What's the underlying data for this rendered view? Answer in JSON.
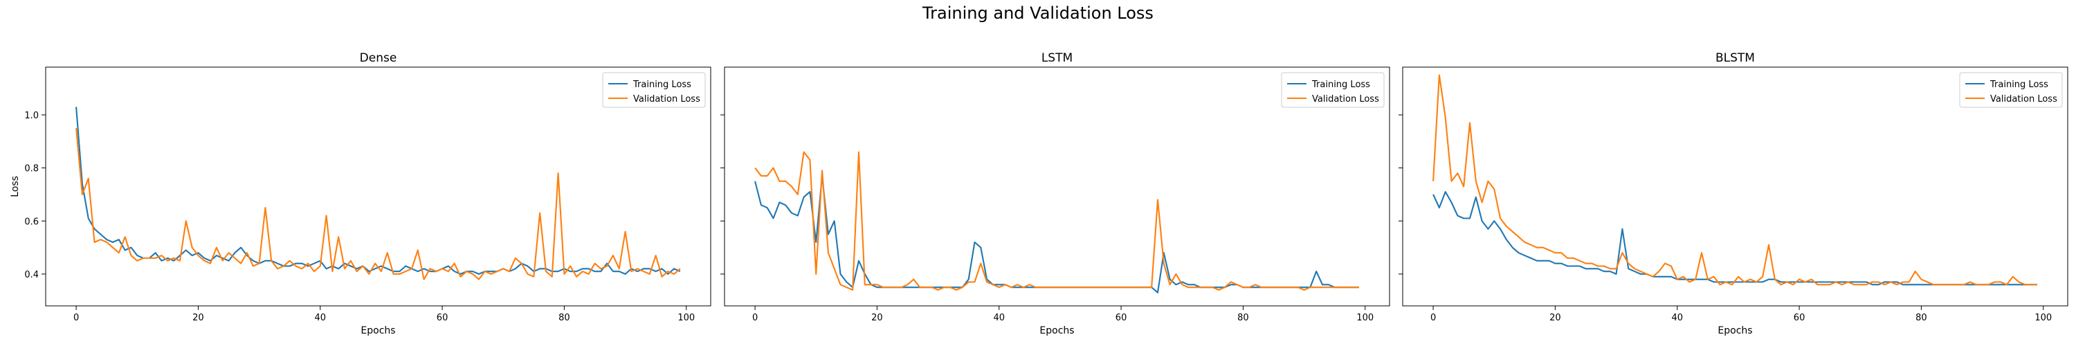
{
  "figure": {
    "title": "Training and Validation Loss"
  },
  "colors": {
    "training": "#1f77b4",
    "validation": "#ff7f0e"
  },
  "chart_data": [
    {
      "type": "line",
      "title": "Dense",
      "xlabel": "Epochs",
      "ylabel": "Loss",
      "xlim": [
        -5,
        104
      ],
      "ylim": [
        0.28,
        1.18
      ],
      "xticks": [
        0,
        20,
        40,
        60,
        80,
        100
      ],
      "yticks": [
        0.4,
        0.6,
        0.8,
        1.0
      ],
      "ytick_labels": [
        "0.4",
        "0.6",
        "0.8",
        "1.0"
      ],
      "legend": "top-right",
      "series": [
        {
          "name": "Training Loss",
          "color": "#1f77b4",
          "values": [
            1.03,
            0.74,
            0.61,
            0.57,
            0.55,
            0.53,
            0.52,
            0.53,
            0.49,
            0.5,
            0.47,
            0.46,
            0.46,
            0.48,
            0.45,
            0.46,
            0.45,
            0.47,
            0.49,
            0.47,
            0.48,
            0.46,
            0.45,
            0.47,
            0.46,
            0.45,
            0.48,
            0.5,
            0.47,
            0.45,
            0.44,
            0.45,
            0.45,
            0.44,
            0.43,
            0.43,
            0.44,
            0.44,
            0.43,
            0.44,
            0.45,
            0.42,
            0.43,
            0.42,
            0.44,
            0.43,
            0.42,
            0.43,
            0.41,
            0.42,
            0.43,
            0.42,
            0.41,
            0.41,
            0.43,
            0.42,
            0.41,
            0.42,
            0.41,
            0.41,
            0.42,
            0.43,
            0.41,
            0.4,
            0.41,
            0.41,
            0.4,
            0.41,
            0.41,
            0.41,
            0.42,
            0.41,
            0.42,
            0.44,
            0.43,
            0.41,
            0.42,
            0.42,
            0.41,
            0.41,
            0.42,
            0.41,
            0.41,
            0.42,
            0.42,
            0.41,
            0.41,
            0.44,
            0.41,
            0.41,
            0.4,
            0.42,
            0.41,
            0.42,
            0.42,
            0.41,
            0.42,
            0.4,
            0.42,
            0.41
          ]
        },
        {
          "name": "Validation Loss",
          "color": "#ff7f0e",
          "values": [
            0.95,
            0.7,
            0.76,
            0.52,
            0.53,
            0.52,
            0.5,
            0.48,
            0.54,
            0.47,
            0.45,
            0.46,
            0.46,
            0.46,
            0.47,
            0.45,
            0.46,
            0.45,
            0.6,
            0.5,
            0.47,
            0.45,
            0.44,
            0.5,
            0.45,
            0.48,
            0.46,
            0.44,
            0.48,
            0.43,
            0.44,
            0.65,
            0.45,
            0.42,
            0.43,
            0.45,
            0.43,
            0.42,
            0.44,
            0.41,
            0.43,
            0.62,
            0.41,
            0.54,
            0.42,
            0.45,
            0.41,
            0.43,
            0.4,
            0.44,
            0.41,
            0.48,
            0.4,
            0.4,
            0.41,
            0.42,
            0.49,
            0.38,
            0.42,
            0.41,
            0.42,
            0.41,
            0.44,
            0.39,
            0.41,
            0.4,
            0.38,
            0.41,
            0.4,
            0.41,
            0.42,
            0.41,
            0.46,
            0.44,
            0.4,
            0.39,
            0.63,
            0.41,
            0.39,
            0.78,
            0.4,
            0.43,
            0.39,
            0.41,
            0.4,
            0.44,
            0.42,
            0.43,
            0.47,
            0.42,
            0.56,
            0.41,
            0.42,
            0.41,
            0.4,
            0.47,
            0.39,
            0.41,
            0.4,
            0.42
          ]
        }
      ]
    },
    {
      "type": "line",
      "title": "LSTM",
      "xlabel": "Epochs",
      "ylabel": "",
      "xlim": [
        -5,
        104
      ],
      "ylim": [
        0.28,
        1.18
      ],
      "xticks": [
        0,
        20,
        40,
        60,
        80,
        100
      ],
      "yticks": [
        0.4,
        0.6,
        0.8,
        1.0
      ],
      "ytick_labels": [],
      "legend": "top-right",
      "series": [
        {
          "name": "Training Loss",
          "color": "#1f77b4",
          "values": [
            0.75,
            0.66,
            0.65,
            0.61,
            0.67,
            0.66,
            0.63,
            0.62,
            0.69,
            0.71,
            0.52,
            0.77,
            0.55,
            0.6,
            0.4,
            0.37,
            0.35,
            0.45,
            0.4,
            0.36,
            0.35,
            0.35,
            0.35,
            0.35,
            0.35,
            0.35,
            0.35,
            0.35,
            0.35,
            0.35,
            0.35,
            0.35,
            0.35,
            0.35,
            0.35,
            0.38,
            0.52,
            0.5,
            0.38,
            0.36,
            0.36,
            0.36,
            0.35,
            0.35,
            0.35,
            0.35,
            0.35,
            0.35,
            0.35,
            0.35,
            0.35,
            0.35,
            0.35,
            0.35,
            0.35,
            0.35,
            0.35,
            0.35,
            0.35,
            0.35,
            0.35,
            0.35,
            0.35,
            0.35,
            0.35,
            0.35,
            0.33,
            0.48,
            0.38,
            0.36,
            0.37,
            0.36,
            0.36,
            0.35,
            0.35,
            0.35,
            0.35,
            0.35,
            0.36,
            0.36,
            0.35,
            0.35,
            0.35,
            0.35,
            0.35,
            0.35,
            0.35,
            0.35,
            0.35,
            0.35,
            0.35,
            0.35,
            0.41,
            0.36,
            0.36,
            0.35,
            0.35,
            0.35,
            0.35,
            0.35
          ]
        },
        {
          "name": "Validation Loss",
          "color": "#ff7f0e",
          "values": [
            0.8,
            0.77,
            0.77,
            0.8,
            0.75,
            0.75,
            0.73,
            0.7,
            0.86,
            0.83,
            0.4,
            0.79,
            0.48,
            0.42,
            0.36,
            0.35,
            0.34,
            0.86,
            0.36,
            0.36,
            0.36,
            0.35,
            0.35,
            0.35,
            0.35,
            0.36,
            0.38,
            0.35,
            0.35,
            0.35,
            0.34,
            0.35,
            0.35,
            0.34,
            0.35,
            0.37,
            0.37,
            0.44,
            0.37,
            0.36,
            0.35,
            0.36,
            0.35,
            0.36,
            0.35,
            0.36,
            0.35,
            0.35,
            0.35,
            0.35,
            0.35,
            0.35,
            0.35,
            0.35,
            0.35,
            0.35,
            0.35,
            0.35,
            0.35,
            0.35,
            0.35,
            0.35,
            0.35,
            0.35,
            0.35,
            0.35,
            0.68,
            0.44,
            0.36,
            0.4,
            0.36,
            0.35,
            0.35,
            0.35,
            0.35,
            0.35,
            0.34,
            0.35,
            0.37,
            0.36,
            0.35,
            0.35,
            0.36,
            0.35,
            0.35,
            0.35,
            0.35,
            0.35,
            0.35,
            0.35,
            0.34,
            0.35,
            0.35,
            0.35,
            0.35,
            0.35,
            0.35,
            0.35,
            0.35,
            0.35
          ]
        }
      ]
    },
    {
      "type": "line",
      "title": "BLSTM",
      "xlabel": "Epochs",
      "ylabel": "",
      "xlim": [
        -5,
        104
      ],
      "ylim": [
        0.28,
        1.18
      ],
      "xticks": [
        0,
        20,
        40,
        60,
        80,
        100
      ],
      "yticks": [
        0.4,
        0.6,
        0.8,
        1.0
      ],
      "ytick_labels": [],
      "legend": "top-right",
      "series": [
        {
          "name": "Training Loss",
          "color": "#1f77b4",
          "values": [
            0.7,
            0.65,
            0.71,
            0.67,
            0.62,
            0.61,
            0.61,
            0.69,
            0.6,
            0.57,
            0.6,
            0.57,
            0.53,
            0.5,
            0.48,
            0.47,
            0.46,
            0.45,
            0.45,
            0.45,
            0.44,
            0.44,
            0.43,
            0.43,
            0.43,
            0.42,
            0.42,
            0.42,
            0.41,
            0.41,
            0.4,
            0.57,
            0.42,
            0.41,
            0.4,
            0.4,
            0.39,
            0.39,
            0.39,
            0.39,
            0.38,
            0.38,
            0.38,
            0.38,
            0.38,
            0.38,
            0.37,
            0.37,
            0.37,
            0.37,
            0.37,
            0.37,
            0.37,
            0.37,
            0.37,
            0.38,
            0.38,
            0.37,
            0.37,
            0.37,
            0.37,
            0.37,
            0.37,
            0.37,
            0.37,
            0.37,
            0.37,
            0.37,
            0.37,
            0.37,
            0.37,
            0.37,
            0.36,
            0.36,
            0.37,
            0.37,
            0.37,
            0.36,
            0.36,
            0.36,
            0.36,
            0.36,
            0.36,
            0.36,
            0.36,
            0.36,
            0.36,
            0.36,
            0.36,
            0.36,
            0.36,
            0.36,
            0.36,
            0.36,
            0.36,
            0.36,
            0.36,
            0.36,
            0.36,
            0.36
          ]
        },
        {
          "name": "Validation Loss",
          "color": "#ff7f0e",
          "values": [
            0.75,
            1.15,
            0.99,
            0.75,
            0.78,
            0.73,
            0.97,
            0.75,
            0.67,
            0.75,
            0.72,
            0.61,
            0.58,
            0.56,
            0.54,
            0.52,
            0.51,
            0.5,
            0.5,
            0.49,
            0.48,
            0.48,
            0.46,
            0.46,
            0.45,
            0.44,
            0.44,
            0.43,
            0.43,
            0.42,
            0.42,
            0.48,
            0.44,
            0.42,
            0.41,
            0.4,
            0.39,
            0.41,
            0.44,
            0.43,
            0.38,
            0.39,
            0.37,
            0.38,
            0.48,
            0.38,
            0.39,
            0.36,
            0.37,
            0.36,
            0.39,
            0.37,
            0.38,
            0.37,
            0.39,
            0.51,
            0.38,
            0.36,
            0.37,
            0.36,
            0.38,
            0.37,
            0.38,
            0.36,
            0.36,
            0.36,
            0.37,
            0.36,
            0.37,
            0.36,
            0.36,
            0.36,
            0.37,
            0.37,
            0.36,
            0.37,
            0.36,
            0.37,
            0.37,
            0.41,
            0.38,
            0.37,
            0.36,
            0.36,
            0.36,
            0.36,
            0.36,
            0.36,
            0.37,
            0.36,
            0.36,
            0.36,
            0.37,
            0.37,
            0.36,
            0.39,
            0.37,
            0.36,
            0.36,
            0.36
          ]
        }
      ]
    }
  ]
}
